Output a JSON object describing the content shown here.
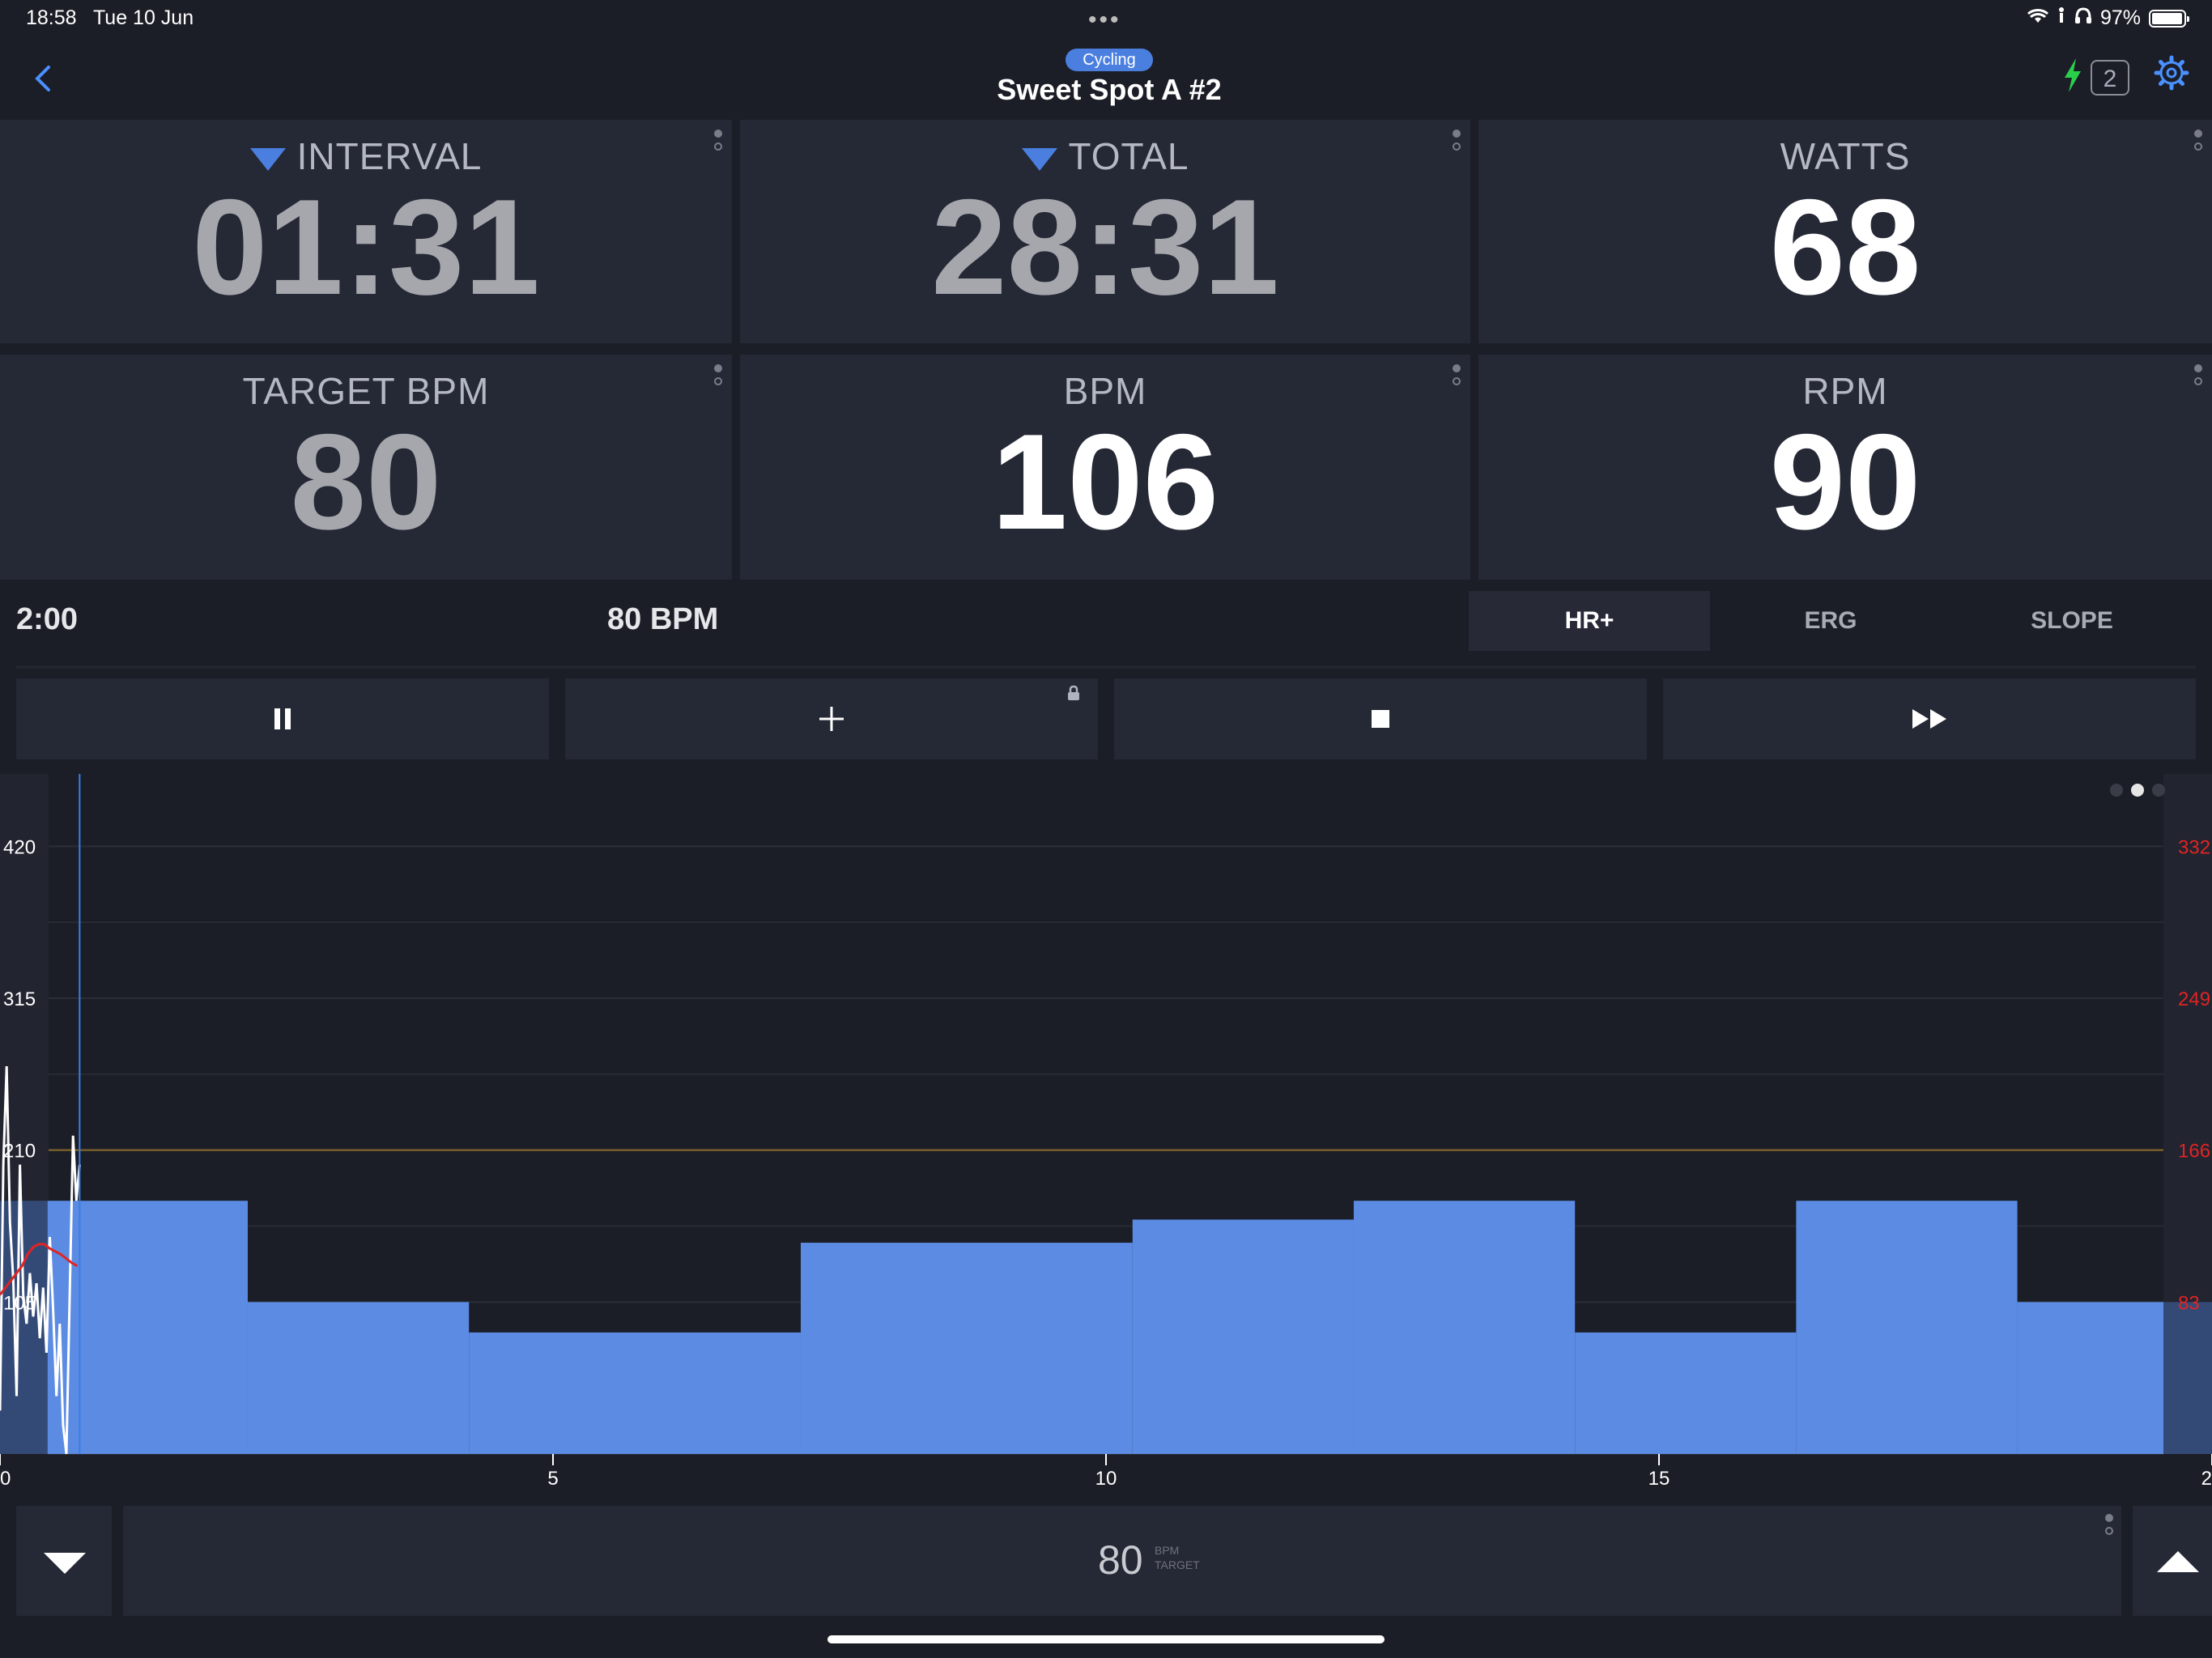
{
  "status_bar": {
    "time": "18:58",
    "date": "Tue 10 Jun",
    "battery": "97%",
    "battery_level": 0.97
  },
  "header": {
    "sport_badge": "Cycling",
    "title": "Sweet Spot A #2",
    "device_count": "2",
    "icons": {
      "back": "chevron-left-icon",
      "power": "bolt-icon",
      "settings": "gear-icon"
    }
  },
  "metrics": [
    {
      "label": "INTERVAL",
      "value": "01:31",
      "countdown": true
    },
    {
      "label": "TOTAL",
      "value": "28:31",
      "countdown": true
    },
    {
      "label": "WATTS",
      "value": "68",
      "countdown": false
    },
    {
      "label": "TARGET BPM",
      "value": "80",
      "countdown": false
    },
    {
      "label": "BPM",
      "value": "106",
      "countdown": false
    },
    {
      "label": "RPM",
      "value": "90",
      "countdown": false
    }
  ],
  "info": {
    "interval_remaining": "2:00",
    "target": "80 BPM"
  },
  "modes": [
    {
      "label": "HR+",
      "active": true
    },
    {
      "label": "ERG",
      "active": false
    },
    {
      "label": "SLOPE",
      "active": false
    }
  ],
  "controls": {
    "icons": [
      "pause-icon",
      "plus-icon",
      "stop-icon",
      "fast-forward-icon"
    ],
    "lock_icon": "lock-icon"
  },
  "chart_data": {
    "type": "area",
    "x_ticks": [
      "0",
      "5",
      "10",
      "15",
      "2"
    ],
    "y_left_ticks": [
      "420",
      "315",
      "210",
      "105"
    ],
    "y_right_ticks": [
      "332",
      "249",
      "166",
      "83"
    ],
    "xlim": [
      0,
      20
    ],
    "ylim": [
      0,
      470
    ],
    "threshold_line": 210,
    "current_position": 0.72,
    "workout_blocks": [
      {
        "x0": 0.43,
        "x1": 2.24,
        "power": 175
      },
      {
        "x0": 2.24,
        "x1": 4.24,
        "power": 105
      },
      {
        "x0": 4.24,
        "x1": 7.24,
        "power": 84
      },
      {
        "x0": 7.24,
        "x1": 10.24,
        "power": 146
      },
      {
        "x0": 10.24,
        "x1": 12.24,
        "power": 162
      },
      {
        "x0": 12.24,
        "x1": 14.24,
        "power": 175
      },
      {
        "x0": 14.24,
        "x1": 16.24,
        "power": 84
      },
      {
        "x0": 16.24,
        "x1": 18.24,
        "power": 175
      },
      {
        "x0": 18.24,
        "x1": 20,
        "power": 105
      }
    ],
    "leading_block": {
      "x0": 0,
      "x1": 0.43,
      "power": 175
    },
    "power_trace": [
      [
        0,
        30
      ],
      [
        0.03,
        200
      ],
      [
        0.06,
        268
      ],
      [
        0.09,
        160
      ],
      [
        0.12,
        120
      ],
      [
        0.15,
        40
      ],
      [
        0.18,
        200
      ],
      [
        0.21,
        110
      ],
      [
        0.24,
        90
      ],
      [
        0.27,
        125
      ],
      [
        0.3,
        95
      ],
      [
        0.33,
        118
      ],
      [
        0.36,
        80
      ],
      [
        0.39,
        115
      ],
      [
        0.42,
        70
      ],
      [
        0.45,
        150
      ],
      [
        0.48,
        100
      ],
      [
        0.51,
        40
      ],
      [
        0.54,
        90
      ],
      [
        0.57,
        20
      ],
      [
        0.6,
        0
      ],
      [
        0.63,
        110
      ],
      [
        0.66,
        220
      ],
      [
        0.69,
        175
      ],
      [
        0.72,
        200
      ]
    ],
    "hr_trace": [
      [
        0,
        110
      ],
      [
        0.05,
        115
      ],
      [
        0.1,
        120
      ],
      [
        0.15,
        125
      ],
      [
        0.2,
        130
      ],
      [
        0.25,
        138
      ],
      [
        0.3,
        143
      ],
      [
        0.35,
        145
      ],
      [
        0.4,
        145
      ],
      [
        0.45,
        142
      ],
      [
        0.5,
        140
      ],
      [
        0.55,
        138
      ],
      [
        0.6,
        135
      ],
      [
        0.65,
        132
      ],
      [
        0.7,
        130
      ]
    ],
    "colors": {
      "workout": "#5b8be2",
      "workout_past": "#344a76",
      "power": "#ffffff",
      "hr": "#e02424",
      "threshold": "#8a6a2a",
      "cursor": "#3b7fe8",
      "right_axis": "#e02424",
      "grid": "#2b2e39"
    }
  },
  "target_control": {
    "value": "80",
    "unit_top": "BPM",
    "unit_bottom": "TARGET",
    "icons": {
      "decrease": "triangle-down-icon",
      "increase": "triangle-up-icon"
    }
  }
}
